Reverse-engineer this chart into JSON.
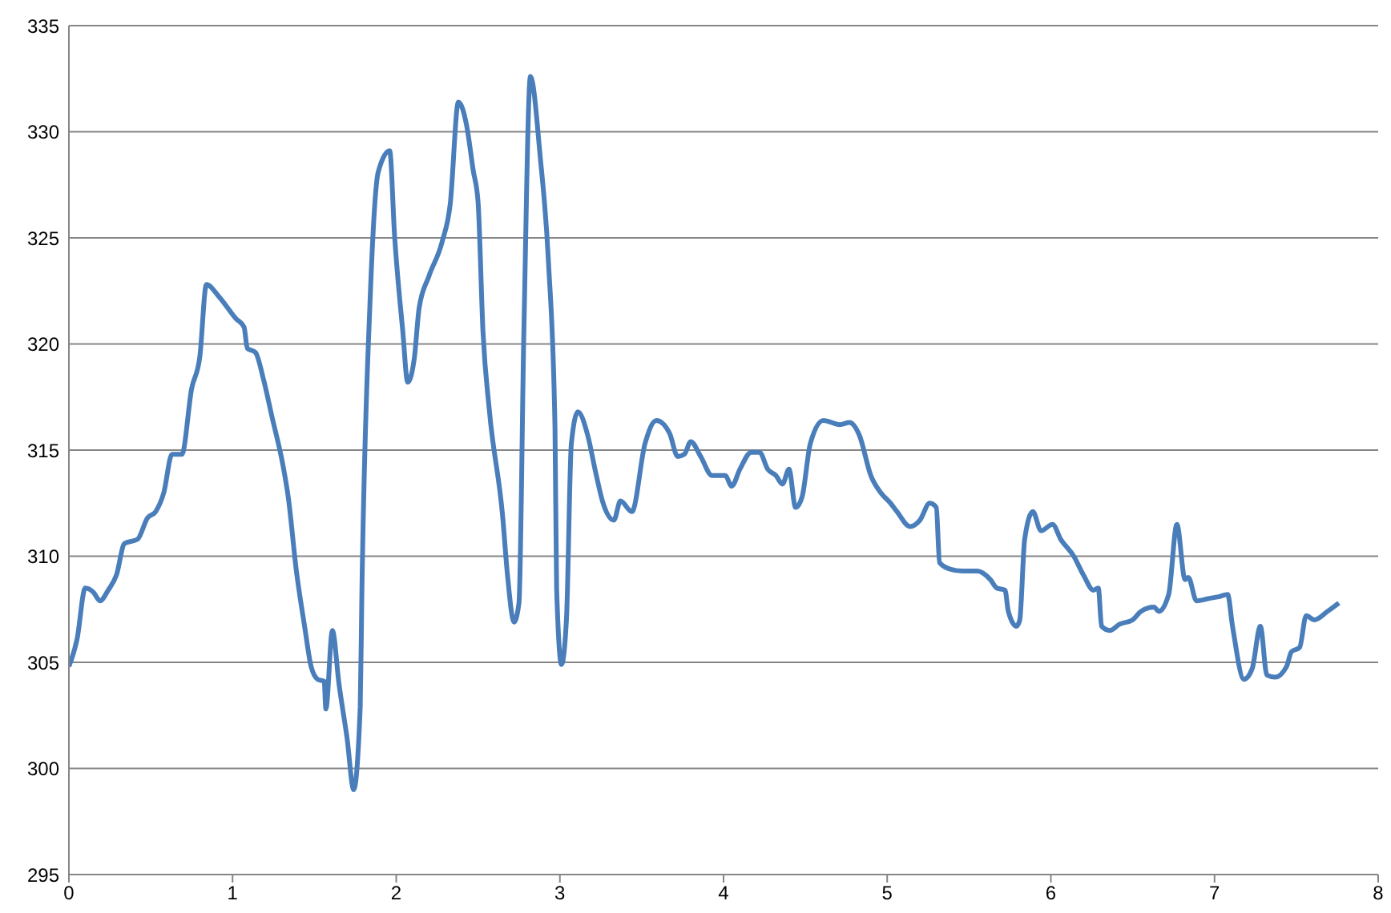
{
  "chart_data": {
    "type": "line",
    "x": [
      0,
      0.05,
      0.1,
      0.15,
      0.19,
      0.24,
      0.29,
      0.34,
      0.42,
      0.48,
      0.53,
      0.58,
      0.63,
      0.69,
      0.75,
      0.8,
      0.84,
      0.92,
      1.02,
      1.07,
      1.09,
      1.14,
      1.19,
      1.24,
      1.31,
      1.34,
      1.39,
      1.44,
      1.48,
      1.52,
      1.56,
      1.57,
      1.61,
      1.65,
      1.7,
      1.74,
      1.78,
      1.79,
      1.84,
      1.89,
      1.96,
      1.99,
      2.04,
      2.07,
      2.11,
      2.14,
      2.2,
      2.28,
      2.33,
      2.38,
      2.43,
      2.47,
      2.5,
      2.53,
      2.57,
      2.65,
      2.68,
      2.72,
      2.75,
      2.78,
      2.82,
      2.88,
      2.93,
      2.97,
      2.98,
      3.01,
      3.04,
      3.07,
      3.11,
      3.17,
      3.22,
      3.26,
      3.33,
      3.37,
      3.44,
      3.52,
      3.59,
      3.67,
      3.72,
      3.76,
      3.8,
      3.86,
      3.93,
      4.01,
      4.05,
      4.1,
      4.17,
      4.22,
      4.27,
      4.32,
      4.36,
      4.4,
      4.44,
      4.48,
      4.53,
      4.61,
      4.71,
      4.77,
      4.83,
      4.9,
      4.96,
      5.02,
      5.06,
      5.14,
      5.2,
      5.26,
      5.3,
      5.32,
      5.38,
      5.46,
      5.55,
      5.63,
      5.67,
      5.72,
      5.74,
      5.79,
      5.81,
      5.84,
      5.89,
      5.94,
      6.01,
      6.06,
      6.14,
      6.2,
      6.26,
      6.29,
      6.31,
      6.36,
      6.42,
      6.5,
      6.55,
      6.63,
      6.66,
      6.72,
      6.77,
      6.82,
      6.84,
      6.89,
      6.96,
      7.03,
      7.08,
      7.11,
      7.18,
      7.23,
      7.28,
      7.32,
      7.37,
      7.44,
      7.47,
      7.52,
      7.56,
      7.61,
      7.69,
      7.76
    ],
    "series": [
      {
        "color": "#4a7ebb",
        "values": [
          304.8,
          306.1,
          308.5,
          308.3,
          307.9,
          308.4,
          309.1,
          310.6,
          310.8,
          311.8,
          312.1,
          313.0,
          314.8,
          314.8,
          317.9,
          319.4,
          322.8,
          322.2,
          321.2,
          320.8,
          319.8,
          319.6,
          318.3,
          316.6,
          314.2,
          312.8,
          309.3,
          306.7,
          304.8,
          304.2,
          304.1,
          302.8,
          306.5,
          304.0,
          301.4,
          299.0,
          302.9,
          308.2,
          322.0,
          328.1,
          329.1,
          325.1,
          320.6,
          318.2,
          319.3,
          321.7,
          323.2,
          324.8,
          326.6,
          331.4,
          330.3,
          328.2,
          326.7,
          320.6,
          316.8,
          311.9,
          309.1,
          306.9,
          307.8,
          320.6,
          332.6,
          328.8,
          323.9,
          316.1,
          308.5,
          304.9,
          307.0,
          315.3,
          316.8,
          315.7,
          313.9,
          312.6,
          311.7,
          312.6,
          312.1,
          315.3,
          316.4,
          315.8,
          314.7,
          314.8,
          315.4,
          314.7,
          313.8,
          313.8,
          313.3,
          314.1,
          314.9,
          314.9,
          314.1,
          313.8,
          313.4,
          314.1,
          312.3,
          312.8,
          315.3,
          316.4,
          316.2,
          316.3,
          315.7,
          313.8,
          313.0,
          312.5,
          312.1,
          311.4,
          311.7,
          312.5,
          312.3,
          309.7,
          309.4,
          309.3,
          309.3,
          308.9,
          308.5,
          308.4,
          307.4,
          306.7,
          307.0,
          310.8,
          312.1,
          311.2,
          311.5,
          310.8,
          310.0,
          309.1,
          308.4,
          308.5,
          306.7,
          306.5,
          306.8,
          307.0,
          307.4,
          307.6,
          307.4,
          308.2,
          311.5,
          308.9,
          309.0,
          307.9,
          308.0,
          308.1,
          308.2,
          306.7,
          304.2,
          304.7,
          306.7,
          304.4,
          304.3,
          304.8,
          305.5,
          305.7,
          307.2,
          307.0,
          307.4,
          307.8
        ]
      }
    ],
    "xlim": [
      0,
      8
    ],
    "xticks": [
      0,
      1,
      2,
      3,
      4,
      5,
      6,
      7,
      8
    ],
    "ylim": [
      295,
      335
    ],
    "yticks": [
      295,
      300,
      305,
      310,
      315,
      320,
      325,
      330,
      335
    ],
    "grid": "y",
    "marker": "none",
    "line_style": "solid",
    "legend": false
  }
}
